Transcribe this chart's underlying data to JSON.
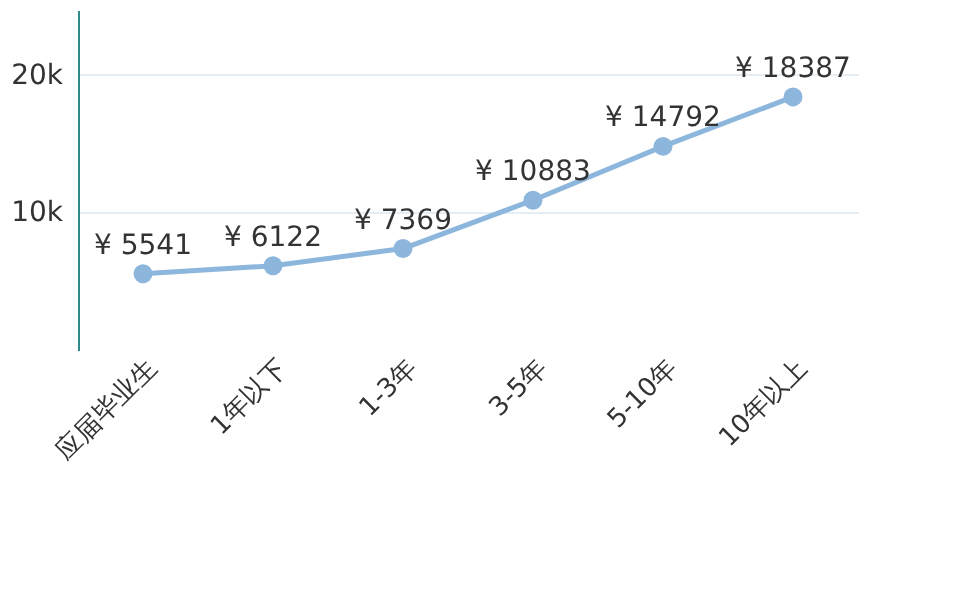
{
  "chart_data": {
    "type": "line",
    "categories": [
      "应届毕业生",
      "1年以下",
      "1-3年",
      "3-5年",
      "5-10年",
      "10年以上"
    ],
    "series": [
      {
        "color": "#8db6dc",
        "values": [
          5541,
          6122,
          7369,
          10883,
          14792,
          18387
        ]
      }
    ],
    "value_labels": [
      "¥ 5541",
      "¥ 6122",
      "¥ 7369",
      "¥ 10883",
      "¥ 14792",
      "¥ 18387"
    ],
    "ylim": [
      0,
      24700
    ],
    "yticks": [
      {
        "value": 10000,
        "label": "10k"
      },
      {
        "value": 20000,
        "label": "20k"
      }
    ],
    "grid": "y",
    "marker": "circle",
    "line_style": "solid"
  }
}
